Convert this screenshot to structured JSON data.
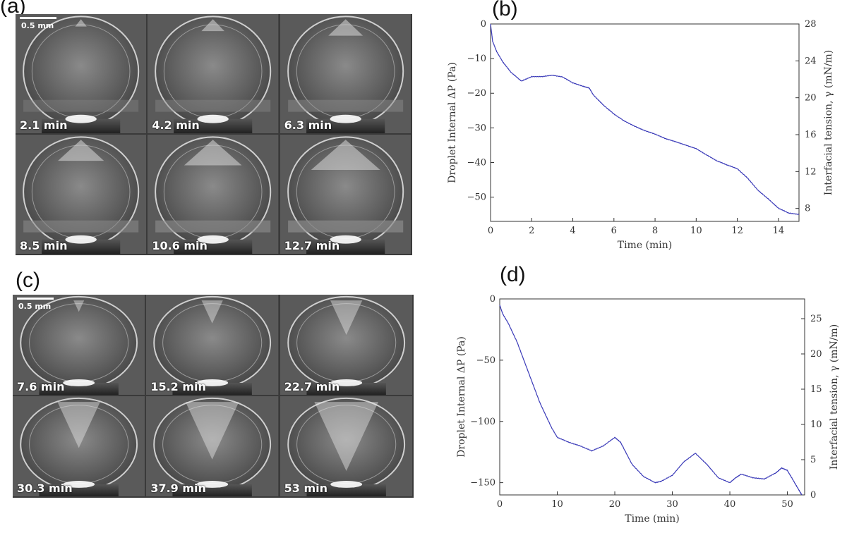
{
  "panels": {
    "a": {
      "label": "(a)",
      "scale_bar": "0.5 mm",
      "frames": [
        "2.1 min",
        "4.2 min",
        "6.3 min",
        "8.5 min",
        "10.6 min",
        "12.7 min"
      ]
    },
    "b": {
      "label": "(b)"
    },
    "c": {
      "label": "(c)",
      "scale_bar": "0.5 mm",
      "frames": [
        "7.6 min",
        "15.2 min",
        "22.7 min",
        "30.3 min",
        "37.9 min",
        "53 min"
      ]
    },
    "d": {
      "label": "(d)"
    }
  },
  "colors": {
    "line": "#3a3ab8",
    "photo_bg": "#4a4a4a"
  },
  "chart_data": [
    {
      "id": "b",
      "type": "line",
      "xlabel": "Time (min)",
      "ylabel": "Droplet Internal ΔP (Pa)",
      "y2label": "Interfacial tension, γ (mN/m)",
      "xlim": [
        0,
        15
      ],
      "ylim": [
        -57,
        0
      ],
      "y2lim": [
        6.6,
        28
      ],
      "xticks": [
        "0",
        "2",
        "4",
        "6",
        "8",
        "10",
        "12",
        "14"
      ],
      "xtick_values": [
        0,
        2,
        4,
        6,
        8,
        10,
        12,
        14
      ],
      "yticks": [
        "0",
        "−10",
        "−20",
        "−30",
        "−40",
        "−50"
      ],
      "ytick_values": [
        0,
        -10,
        -20,
        -30,
        -40,
        -50
      ],
      "y2ticks": [
        "28",
        "24",
        "20",
        "16",
        "12",
        "8"
      ],
      "y2tick_values": [
        28,
        24,
        20,
        16,
        12,
        8
      ],
      "series": [
        {
          "name": "ΔP",
          "x": [
            0,
            0.1,
            0.3,
            0.6,
            1.0,
            1.5,
            2.0,
            2.5,
            3.0,
            3.5,
            4.0,
            4.5,
            4.8,
            5.0,
            5.5,
            6.0,
            6.5,
            7.0,
            7.5,
            8.0,
            8.5,
            9.0,
            9.5,
            10.0,
            10.5,
            11.0,
            11.5,
            12.0,
            12.5,
            13.0,
            13.5,
            14.0,
            14.5,
            15.0
          ],
          "y": [
            0,
            -5,
            -8,
            -11,
            -14,
            -16.5,
            -15.2,
            -15.2,
            -14.8,
            -15.3,
            -17,
            -18,
            -18.5,
            -20.5,
            -23.5,
            -26,
            -28,
            -29.5,
            -30.8,
            -31.8,
            -33.1,
            -34,
            -35,
            -36,
            -37.8,
            -39.5,
            -40.7,
            -41.8,
            -44.5,
            -48,
            -50.5,
            -53.2,
            -54.6,
            -55
          ]
        }
      ]
    },
    {
      "id": "d",
      "type": "line",
      "xlabel": "Time (min)",
      "ylabel": "Droplet Internal ΔP (Pa)",
      "y2label": "Interfacial tension, γ (mN/m)",
      "xlim": [
        0,
        53
      ],
      "ylim": [
        -160,
        0
      ],
      "y2lim": [
        0,
        27.8
      ],
      "xticks": [
        "0",
        "10",
        "20",
        "30",
        "40",
        "50"
      ],
      "xtick_values": [
        0,
        10,
        20,
        30,
        40,
        50
      ],
      "yticks": [
        "0",
        "−50",
        "−100",
        "−150"
      ],
      "ytick_values": [
        0,
        -50,
        -100,
        -150
      ],
      "y2ticks": [
        "25",
        "20",
        "15",
        "10",
        "5",
        "0"
      ],
      "y2tick_values": [
        25,
        20,
        15,
        10,
        5,
        0
      ],
      "series": [
        {
          "name": "ΔP",
          "x": [
            0,
            0.5,
            1.5,
            3,
            5,
            7,
            9,
            10,
            12,
            14,
            16,
            18,
            20,
            21,
            23,
            25,
            27,
            28,
            30,
            32,
            34,
            36,
            38,
            40,
            41,
            42,
            44,
            46,
            48,
            49,
            50,
            51,
            52,
            52.5
          ],
          "y": [
            -5,
            -12,
            -20,
            -35,
            -60,
            -85,
            -105,
            -113,
            -117,
            -120,
            -124,
            -120,
            -113,
            -117,
            -135,
            -145,
            -150,
            -149,
            -144,
            -133,
            -126,
            -135,
            -146,
            -150,
            -146,
            -143,
            -146,
            -147,
            -142,
            -138,
            -140,
            -148,
            -156,
            -160
          ]
        }
      ]
    }
  ]
}
